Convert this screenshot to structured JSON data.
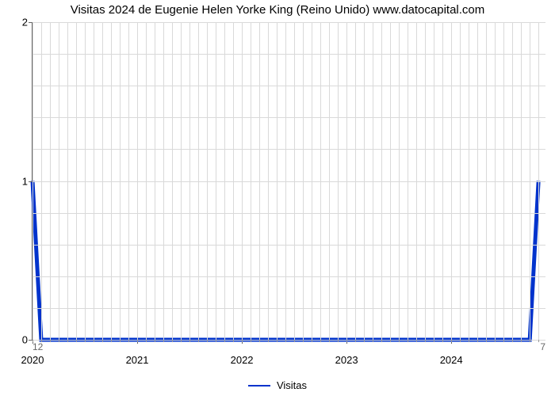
{
  "chart": {
    "type": "line",
    "title": "Visitas 2024 de Eugenie Helen Yorke King (Reino Unido) www.datocapital.com",
    "title_fontsize": 15,
    "background_color": "#ffffff",
    "grid_color": "#d9d9d9",
    "axis_color": "#666666",
    "tick_label_fontsize": 13,
    "x": {
      "min": 2020,
      "max": 2024.9,
      "major_ticks": [
        2020,
        2021,
        2022,
        2023,
        2024
      ],
      "labels": [
        "2020",
        "2021",
        "2022",
        "2023",
        "2024"
      ],
      "minor_count_between": 11,
      "grid_step_months": 1
    },
    "y": {
      "min": 0,
      "max": 2,
      "major_ticks": [
        0,
        1,
        2
      ],
      "labels": [
        "0",
        "1",
        "2"
      ],
      "minor_grid_count_between": 4
    },
    "secondary_x": {
      "left_label": "12",
      "right_label": "7"
    },
    "series": [
      {
        "name": "Visitas",
        "color": "#0033cc",
        "line_width": 2,
        "points": [
          [
            2020.0,
            1
          ],
          [
            2020.083,
            0
          ],
          [
            2024.75,
            0
          ],
          [
            2024.833,
            1
          ]
        ]
      }
    ],
    "legend": {
      "position": "bottom-center",
      "fontsize": 13
    }
  }
}
